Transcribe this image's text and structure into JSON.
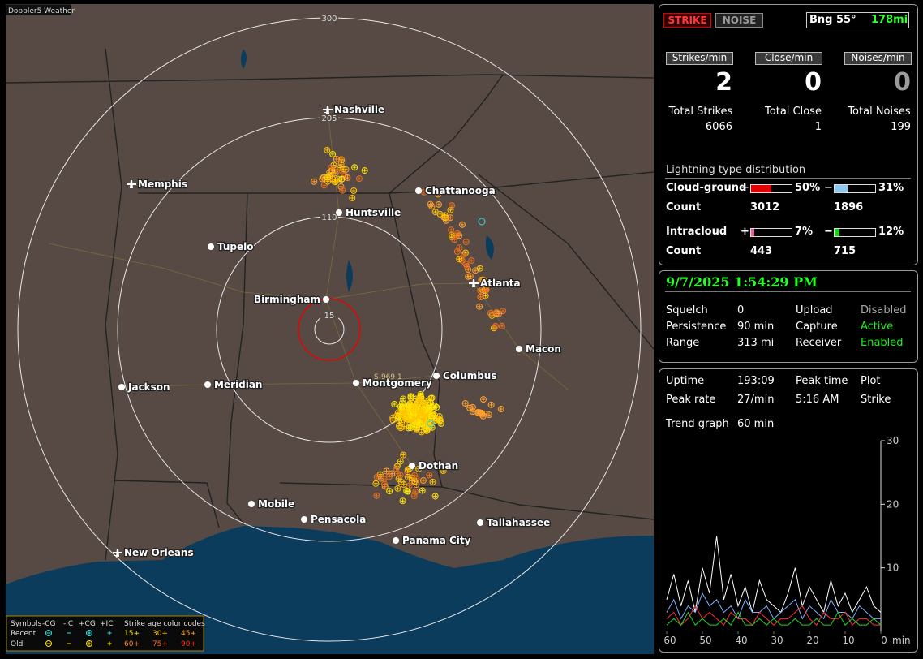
{
  "map": {
    "title": "Doppler5 Weather",
    "range_rings": [
      "300",
      "205",
      "110",
      "15"
    ],
    "marker": "S-969 1",
    "cities": [
      "Nashville",
      "Memphis",
      "Chattanooga",
      "Huntsville",
      "Tupelo",
      "Atlanta",
      "Birmingham",
      "Macon",
      "Jackson",
      "Meridian",
      "Montgomery",
      "Columbus",
      "Dothan",
      "Mobile",
      "Pensacola",
      "Tallahassee",
      "Panama City",
      "New Orleans"
    ],
    "legend": {
      "header": [
        "Symbols",
        "-CG",
        "-IC",
        "+CG",
        "+IC",
        "Strike age color codes"
      ],
      "rows": [
        {
          "label": "Recent",
          "ages": [
            "15+",
            "30+",
            "45+"
          ]
        },
        {
          "label": "Old",
          "ages": [
            "60+",
            "75+",
            "90+"
          ]
        }
      ]
    }
  },
  "panel": {
    "modes": [
      "STRIKE",
      "NOISE"
    ],
    "bearing": "Bng 55°",
    "distance": "178mi",
    "rates": [
      {
        "label": "Strikes/min",
        "value": 2
      },
      {
        "label": "Close/min",
        "value": 0
      },
      {
        "label": "Noises/min",
        "value": 0
      }
    ],
    "totals": [
      {
        "label": "Total Strikes",
        "value": 6066
      },
      {
        "label": "Total Close",
        "value": 1
      },
      {
        "label": "Total Noises",
        "value": 199
      }
    ],
    "distribution": {
      "title": "Lightning type distribution",
      "rows": [
        {
          "label": "Cloud-ground",
          "items": [
            {
              "sign": "+",
              "percent": {
                "value": 50,
                "label": "50%"
              },
              "color": "#e00000"
            },
            {
              "sign": "−",
              "percent": {
                "value": 31,
                "label": "31%"
              },
              "color": "#8ec8ee"
            }
          ],
          "count_label": "Count",
          "counts": [
            3012,
            1896
          ]
        },
        {
          "label": "Intracloud",
          "items": [
            {
              "sign": "+",
              "percent": {
                "value": 7,
                "label": "7%"
              },
              "color": "#e060a0"
            },
            {
              "sign": "−",
              "percent": {
                "value": 12,
                "label": "12%"
              },
              "color": "#20d020"
            }
          ],
          "count_label": "Count",
          "counts": [
            443,
            715
          ]
        }
      ]
    },
    "status": {
      "datetime": "9/7/2025 1:54:29 PM",
      "rows": [
        [
          "Squelch",
          "0",
          "Upload",
          "Disabled"
        ],
        [
          "Persistence",
          "90 min",
          "Capture",
          "Active"
        ],
        [
          "Range",
          "313 mi",
          "Receiver",
          "Enabled"
        ]
      ]
    },
    "stats": {
      "rows": [
        [
          "Uptime",
          "193:09",
          "Peak time",
          "Plot"
        ],
        [
          "Peak rate",
          "27/min",
          "5:16 AM",
          "Strike"
        ]
      ],
      "trend_label": "Trend graph",
      "trend_span": "60 min"
    }
  },
  "chart_data": {
    "type": "line",
    "x": [
      60,
      58,
      56,
      54,
      52,
      50,
      48,
      46,
      44,
      42,
      40,
      38,
      36,
      34,
      32,
      30,
      28,
      26,
      24,
      22,
      20,
      18,
      16,
      14,
      12,
      10,
      8,
      6,
      4,
      2,
      0
    ],
    "xlim": [
      60,
      0
    ],
    "ylim": [
      0,
      30
    ],
    "xticks": [
      60,
      50,
      40,
      30,
      20,
      10,
      0
    ],
    "yticks": [
      10,
      20,
      30
    ],
    "x_label": "min",
    "series": [
      {
        "color": "#ffffff",
        "values": [
          5,
          9,
          4,
          8,
          3,
          10,
          6,
          15,
          5,
          9,
          4,
          7,
          3,
          8,
          5,
          4,
          3,
          6,
          10,
          4,
          7,
          5,
          3,
          8,
          4,
          6,
          3,
          5,
          7,
          4,
          3
        ]
      },
      {
        "color": "#7fb0ff",
        "values": [
          3,
          5,
          2,
          4,
          3,
          6,
          4,
          5,
          3,
          4,
          2,
          5,
          3,
          3,
          4,
          2,
          3,
          4,
          5,
          2,
          4,
          3,
          2,
          5,
          3,
          3,
          2,
          4,
          3,
          2,
          2
        ]
      },
      {
        "color": "#ff3030",
        "values": [
          2,
          3,
          1,
          2,
          4,
          2,
          3,
          2,
          1,
          3,
          2,
          2,
          1,
          3,
          2,
          1,
          2,
          2,
          3,
          4,
          2,
          1,
          3,
          2,
          2,
          3,
          1,
          2,
          2,
          1,
          1
        ]
      },
      {
        "color": "#20d020",
        "values": [
          1,
          2,
          1,
          3,
          1,
          2,
          1,
          1,
          2,
          1,
          3,
          1,
          1,
          2,
          1,
          2,
          1,
          1,
          2,
          1,
          1,
          2,
          1,
          1,
          3,
          1,
          2,
          1,
          1,
          2,
          1
        ]
      }
    ]
  }
}
